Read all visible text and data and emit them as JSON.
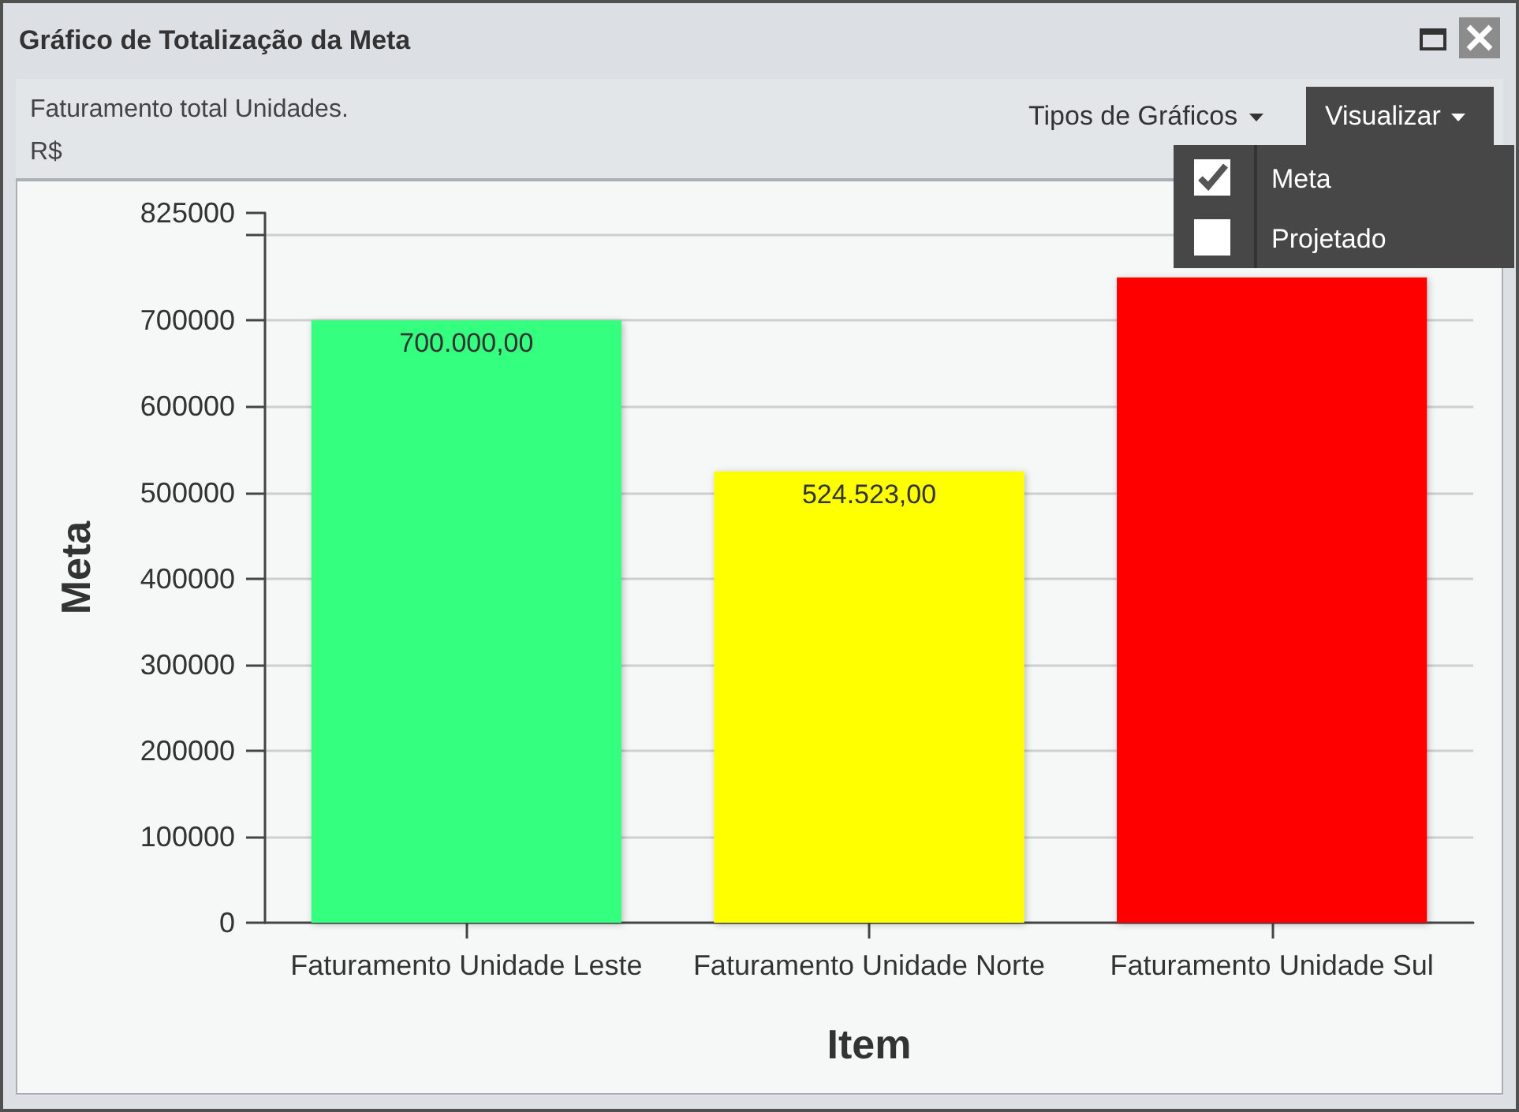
{
  "chart_data": {
    "type": "bar",
    "title": "Gráfico de Totalização da Meta",
    "subtitle": "Faturamento total Unidades.",
    "xlabel": "Item",
    "ylabel": "Meta",
    "categories": [
      "Faturamento Unidade Leste",
      "Faturamento Unidade Norte",
      "Faturamento Unidade Sul"
    ],
    "values": [
      700000,
      524523,
      750000
    ],
    "colors": [
      "#36ff7f",
      "#ffff00",
      "#ff0000"
    ],
    "value_labels": [
      "700.000,00",
      "524.523,00",
      null
    ],
    "ylim": [
      0,
      825000
    ],
    "yticks": [
      0,
      100000,
      200000,
      300000,
      400000,
      500000,
      600000,
      700000,
      {
        "value": 800000,
        "label": null
      },
      825000
    ],
    "grid": "y",
    "annotations": [
      "R$",
      "Tipos de Gráficos",
      "Visualizar",
      "Meta",
      "Projetado"
    ]
  }
}
